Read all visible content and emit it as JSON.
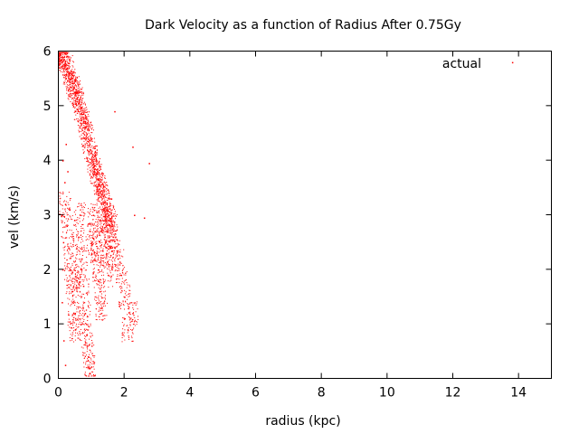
{
  "chart_data": {
    "type": "scatter",
    "title": "Dark Velocity as a function of Radius After 0.75Gy",
    "xlabel": "radius (kpc)",
    "ylabel": "vel (km/s)",
    "xlim": [
      0,
      15
    ],
    "ylim": [
      0,
      6
    ],
    "xticks": [
      "0",
      "2",
      "4",
      "6",
      "8",
      "10",
      "12",
      "14"
    ],
    "yticks": [
      "0",
      "1",
      "2",
      "3",
      "4",
      "5",
      "6"
    ],
    "legend_position": "top-right",
    "grid": false,
    "series": [
      {
        "name": "actual",
        "color": "#ff0000",
        "marker": "dot",
        "description_note": "dense particle cloud",
        "points": [
          [
            0.05,
            5.95
          ],
          [
            0.1,
            5.9
          ],
          [
            0.15,
            5.85
          ],
          [
            0.2,
            5.78
          ],
          [
            0.25,
            5.7
          ],
          [
            0.3,
            5.6
          ],
          [
            0.35,
            5.5
          ],
          [
            0.4,
            5.42
          ],
          [
            0.45,
            5.32
          ],
          [
            0.5,
            5.25
          ],
          [
            0.55,
            5.15
          ],
          [
            0.6,
            5.05
          ],
          [
            0.65,
            4.95
          ],
          [
            0.7,
            4.85
          ],
          [
            0.75,
            4.72
          ],
          [
            0.8,
            4.6
          ],
          [
            0.85,
            4.48
          ],
          [
            0.9,
            4.35
          ],
          [
            0.95,
            4.2
          ],
          [
            1.0,
            4.05
          ],
          [
            1.05,
            3.95
          ],
          [
            1.1,
            3.85
          ],
          [
            1.15,
            3.75
          ],
          [
            1.2,
            3.65
          ],
          [
            1.25,
            3.55
          ],
          [
            1.3,
            3.45
          ],
          [
            1.35,
            3.35
          ],
          [
            1.4,
            3.25
          ],
          [
            1.45,
            3.1
          ],
          [
            1.5,
            3.0
          ],
          [
            1.55,
            2.9
          ],
          [
            1.6,
            2.8
          ],
          [
            1.65,
            2.6
          ],
          [
            1.7,
            2.4
          ],
          [
            1.8,
            2.2
          ],
          [
            1.9,
            1.9
          ],
          [
            2.0,
            1.5
          ],
          [
            2.1,
            0.9
          ],
          [
            2.25,
            1.2
          ],
          [
            0.2,
            3.2
          ],
          [
            0.25,
            2.8
          ],
          [
            0.3,
            2.4
          ],
          [
            0.35,
            2.0
          ],
          [
            0.4,
            1.6
          ],
          [
            0.45,
            1.2
          ],
          [
            0.5,
            0.9
          ],
          [
            0.55,
            1.8
          ],
          [
            0.6,
            2.6
          ],
          [
            0.65,
            3.0
          ],
          [
            0.7,
            2.2
          ],
          [
            0.75,
            1.7
          ],
          [
            0.8,
            1.2
          ],
          [
            0.85,
            0.8
          ],
          [
            0.9,
            0.4
          ],
          [
            0.95,
            0.2
          ],
          [
            1.0,
            2.5
          ],
          [
            1.05,
            3.0
          ],
          [
            1.1,
            2.7
          ],
          [
            1.15,
            2.3
          ],
          [
            1.2,
            2.0
          ],
          [
            1.25,
            1.6
          ],
          [
            1.3,
            1.3
          ],
          [
            1.35,
            2.9
          ],
          [
            1.4,
            2.6
          ],
          [
            1.45,
            2.3
          ],
          [
            1.5,
            1.9
          ],
          [
            1.55,
            2.4
          ],
          [
            1.6,
            3.3
          ],
          [
            0.12,
            4.0
          ],
          [
            0.18,
            3.6
          ],
          [
            0.22,
            4.3
          ],
          [
            0.27,
            3.8
          ],
          [
            0.33,
            3.1
          ],
          [
            0.15,
            0.7
          ],
          [
            0.2,
            0.25
          ],
          [
            0.1,
            1.4
          ],
          [
            0.12,
            2.0
          ],
          [
            0.14,
            2.5
          ],
          [
            2.25,
            4.25
          ],
          [
            2.75,
            3.95
          ],
          [
            2.6,
            2.95
          ],
          [
            2.3,
            3.0
          ],
          [
            1.7,
            4.9
          ],
          [
            13.8,
            5.8
          ]
        ]
      }
    ]
  }
}
